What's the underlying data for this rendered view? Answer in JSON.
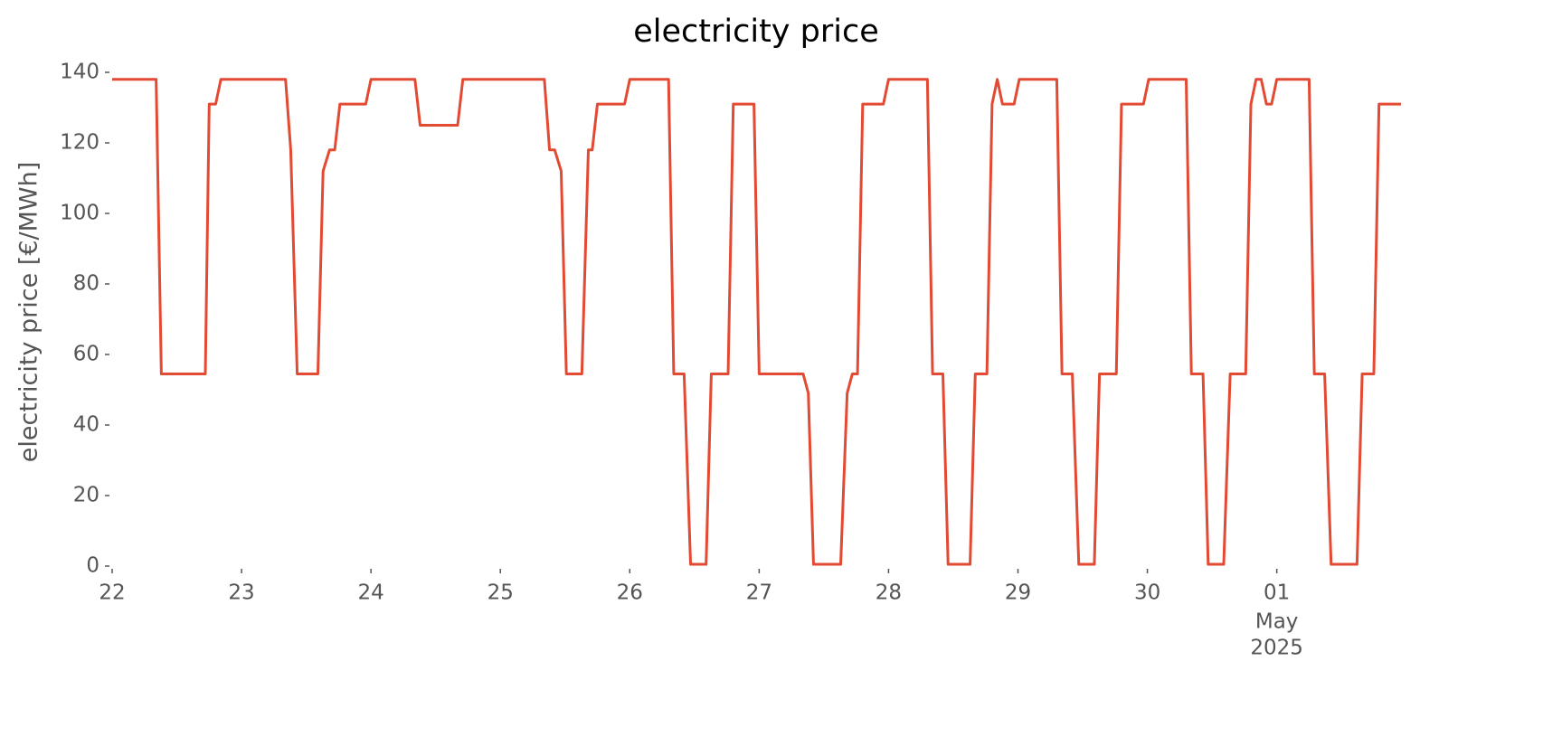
{
  "chart_data": {
    "type": "line",
    "title": "electricity price",
    "ylabel": "electricity price [€/MWh]",
    "color": "#e24a33",
    "grid": false,
    "xlim": [
      22,
      31.96
    ],
    "ylim": [
      0,
      140
    ],
    "yticks": [
      0,
      20,
      40,
      60,
      80,
      100,
      120,
      140
    ],
    "xticks": [
      22,
      23,
      24,
      25,
      26,
      27,
      28,
      29,
      30,
      {
        "value": 31,
        "label": "01"
      }
    ],
    "x_period_labels": [
      "May",
      "2025"
    ],
    "x": [
      22.0,
      22.34,
      22.38,
      22.72,
      22.75,
      22.8,
      22.84,
      23.34,
      23.38,
      23.43,
      23.59,
      23.63,
      23.68,
      23.72,
      23.76,
      23.96,
      24.0,
      24.34,
      24.38,
      24.67,
      24.71,
      25.34,
      25.38,
      25.42,
      25.47,
      25.51,
      25.63,
      25.68,
      25.71,
      25.75,
      25.96,
      26.0,
      26.3,
      26.34,
      26.42,
      26.47,
      26.59,
      26.63,
      26.76,
      26.8,
      26.96,
      27.0,
      27.34,
      27.38,
      27.42,
      27.63,
      27.68,
      27.72,
      27.76,
      27.8,
      27.96,
      28.0,
      28.3,
      28.34,
      28.42,
      28.46,
      28.63,
      28.67,
      28.76,
      28.8,
      28.84,
      28.88,
      28.97,
      29.01,
      29.3,
      29.34,
      29.42,
      29.47,
      29.59,
      29.63,
      29.76,
      29.8,
      29.97,
      30.01,
      30.3,
      30.34,
      30.43,
      30.47,
      30.59,
      30.64,
      30.76,
      30.8,
      30.84,
      30.88,
      30.92,
      30.96,
      31.0,
      31.25,
      31.29,
      31.37,
      31.42,
      31.62,
      31.66,
      31.75,
      31.79,
      31.96
    ],
    "values": [
      138,
      138,
      54.5,
      54.5,
      131,
      131,
      138,
      138,
      118,
      54.5,
      54.5,
      112,
      118,
      118,
      131,
      131,
      138,
      138,
      125,
      125,
      138,
      138,
      118,
      118,
      112,
      54.5,
      54.5,
      118,
      118,
      131,
      131,
      138,
      138,
      54.5,
      54.5,
      0.5,
      0.5,
      54.5,
      54.5,
      131,
      131,
      54.5,
      54.5,
      49,
      0.5,
      0.5,
      49,
      54.5,
      54.5,
      131,
      131,
      138,
      138,
      54.5,
      54.5,
      0.5,
      0.5,
      54.5,
      54.5,
      131,
      138,
      131,
      131,
      138,
      138,
      54.5,
      54.5,
      0.5,
      0.5,
      54.5,
      54.5,
      131,
      131,
      138,
      138,
      54.5,
      54.5,
      0.5,
      0.5,
      54.5,
      54.5,
      131,
      138,
      138,
      131,
      131,
      138,
      138,
      54.5,
      54.5,
      0.5,
      0.5,
      54.5,
      54.5,
      131,
      131
    ]
  }
}
